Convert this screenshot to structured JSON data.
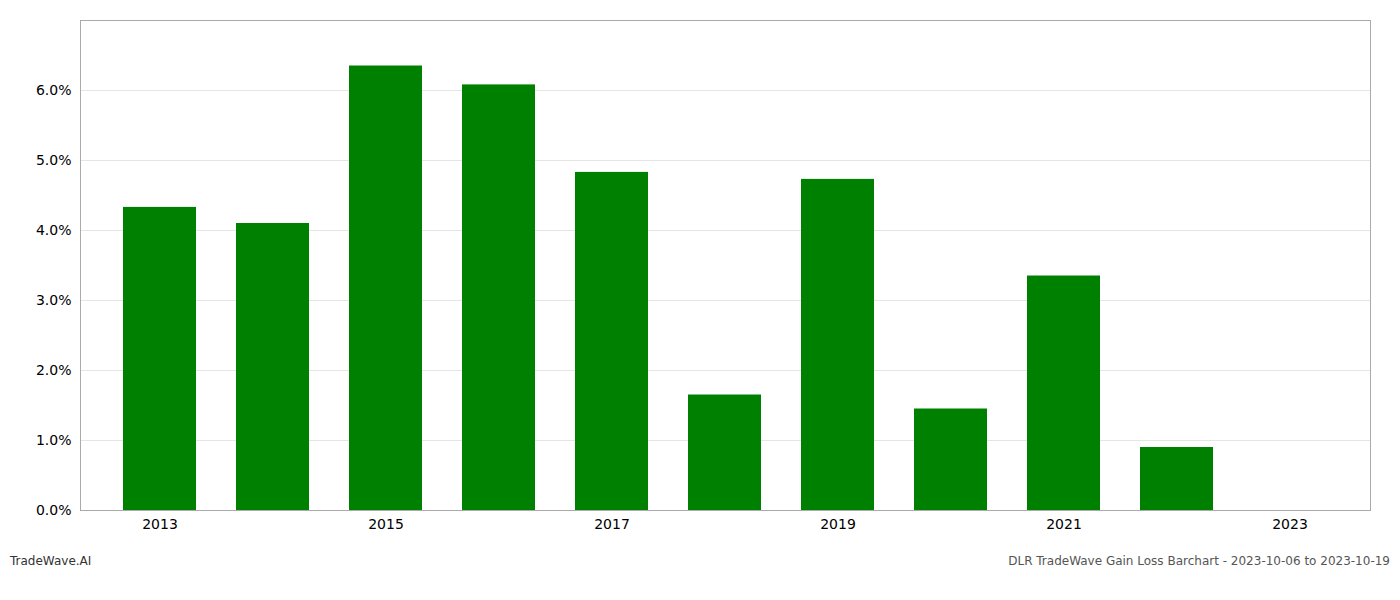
{
  "chart_data": {
    "type": "bar",
    "categories": [
      "2013",
      null,
      "2015",
      null,
      "2017",
      null,
      "2019",
      null,
      "2021",
      null,
      "2023"
    ],
    "values": [
      0.0433,
      0.041,
      0.0635,
      0.0608,
      0.0483,
      0.0165,
      0.0473,
      0.0145,
      0.0335,
      0.009,
      0.0
    ],
    "color": "#008000",
    "ylim": [
      0.0,
      0.07
    ],
    "yticks": [
      {
        "value": 0.0,
        "label": "0.0%"
      },
      {
        "value": 0.01,
        "label": "1.0%"
      },
      {
        "value": 0.02,
        "label": "2.0%"
      },
      {
        "value": 0.03,
        "label": "3.0%"
      },
      {
        "value": 0.04,
        "label": "4.0%"
      },
      {
        "value": 0.05,
        "label": "5.0%"
      },
      {
        "value": 0.06,
        "label": "6.0%"
      }
    ],
    "grid": true,
    "annotations": [
      "TradeWave.AI",
      "DLR TradeWave Gain Loss Barchart - 2023-10-06 to 2023-10-19"
    ]
  }
}
